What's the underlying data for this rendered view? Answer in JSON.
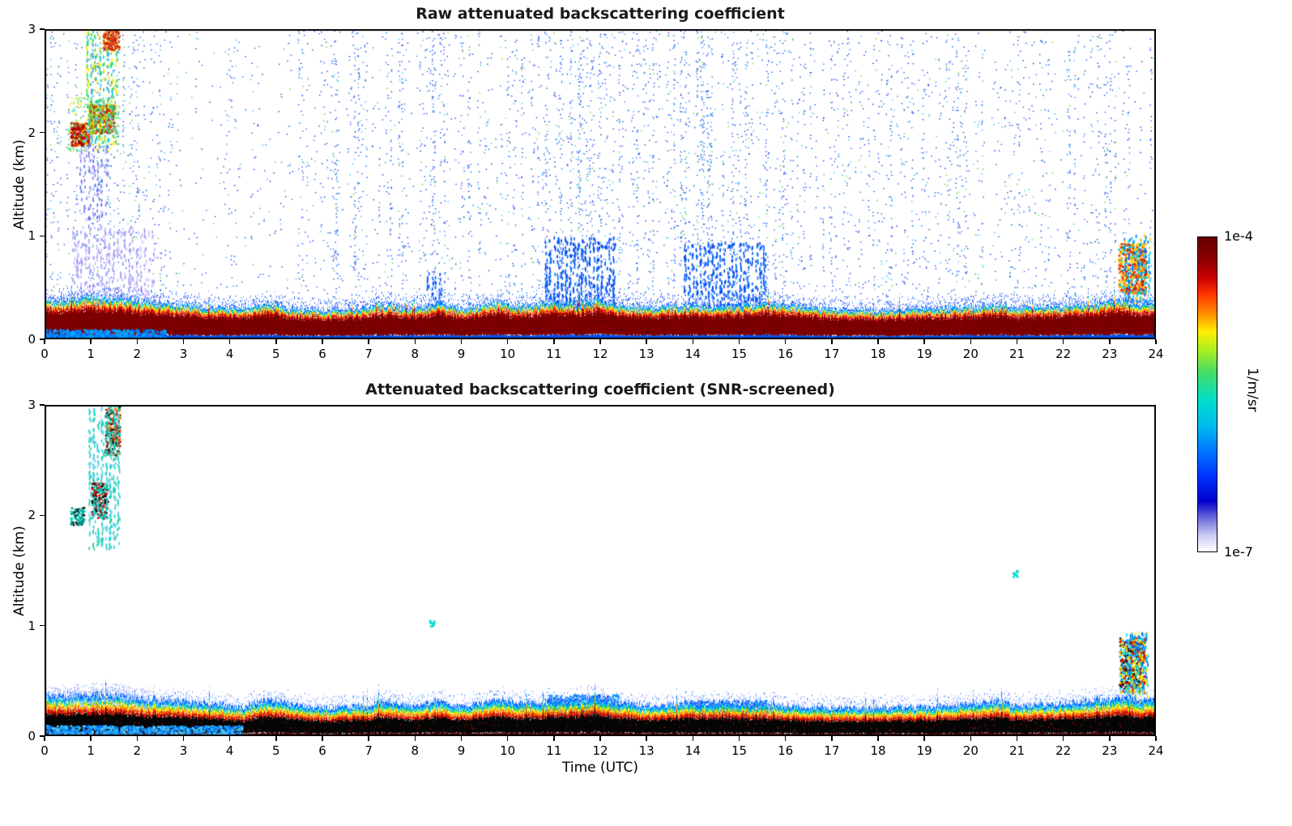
{
  "figure": {
    "colorbar": {
      "label_top": "1e-4",
      "label_bottom": "1e-7",
      "unit_label": "1/m/sr",
      "stops": [
        {
          "c": "#660000",
          "p": 0
        },
        {
          "c": "#8b0000",
          "p": 7
        },
        {
          "c": "#cc0000",
          "p": 13
        },
        {
          "c": "#ff3300",
          "p": 18
        },
        {
          "c": "#ff8800",
          "p": 24
        },
        {
          "c": "#ffee00",
          "p": 30
        },
        {
          "c": "#aaee22",
          "p": 36
        },
        {
          "c": "#44dd66",
          "p": 43
        },
        {
          "c": "#00ddcc",
          "p": 52
        },
        {
          "c": "#00bbee",
          "p": 60
        },
        {
          "c": "#0077ff",
          "p": 68
        },
        {
          "c": "#0033ff",
          "p": 76
        },
        {
          "c": "#0000cc",
          "p": 84
        },
        {
          "c": "#7777dd",
          "p": 90
        },
        {
          "c": "#ccccf5",
          "p": 95
        },
        {
          "c": "#ffffff",
          "p": 100
        }
      ]
    }
  },
  "chart_data": [
    {
      "type": "heatmap",
      "title": "Raw attenuated backscattering coefficient",
      "ylabel": "Altitude (km)",
      "xlabel": "",
      "xlim": [
        0,
        24
      ],
      "ylim": [
        0,
        3
      ],
      "xticks": [
        0,
        1,
        2,
        3,
        4,
        5,
        6,
        7,
        8,
        9,
        10,
        11,
        12,
        13,
        14,
        15,
        16,
        17,
        18,
        19,
        20,
        21,
        22,
        23,
        24
      ],
      "yticks": [
        0,
        1,
        2,
        3
      ],
      "value_min_label": "1e-7",
      "value_max_label": "1e-4",
      "units": "1/m/sr",
      "noise_density_per_hour": [
        0.38,
        0.55,
        0.3,
        0.14,
        0.14,
        0.3,
        0.55,
        0.5,
        0.55,
        0.5,
        0.45,
        0.62,
        0.58,
        0.62,
        0.62,
        0.5,
        0.38,
        0.45,
        0.45,
        0.4,
        0.35,
        0.35,
        0.45,
        0.38
      ],
      "noise_palette": {
        "blue": [
          "#0033dd",
          "#0055ff",
          "#1a42e6",
          "#3366ff"
        ],
        "cyan": "#22bbee",
        "green": "#55cc44"
      },
      "layer": {
        "top_km": [
          [
            0,
            0.36
          ],
          [
            0.5,
            0.38
          ],
          [
            1,
            0.4
          ],
          [
            1.5,
            0.38
          ],
          [
            2,
            0.36
          ],
          [
            2.5,
            0.34
          ],
          [
            3,
            0.32
          ],
          [
            3.5,
            0.3
          ],
          [
            4,
            0.29
          ],
          [
            4.5,
            0.3
          ],
          [
            4.9,
            0.34
          ],
          [
            5.2,
            0.29
          ],
          [
            6,
            0.27
          ],
          [
            7,
            0.29
          ],
          [
            7.3,
            0.33
          ],
          [
            8,
            0.28
          ],
          [
            8.45,
            0.34
          ],
          [
            9,
            0.28
          ],
          [
            9.8,
            0.35
          ],
          [
            10.2,
            0.3
          ],
          [
            11,
            0.35
          ],
          [
            11.5,
            0.33
          ],
          [
            11.9,
            0.37
          ],
          [
            12.3,
            0.32
          ],
          [
            13,
            0.29
          ],
          [
            13.5,
            0.31
          ],
          [
            14,
            0.32
          ],
          [
            14.5,
            0.3
          ],
          [
            15,
            0.32
          ],
          [
            15.8,
            0.34
          ],
          [
            16.5,
            0.3
          ],
          [
            17,
            0.28
          ],
          [
            18,
            0.27
          ],
          [
            19,
            0.28
          ],
          [
            20,
            0.3
          ],
          [
            20.6,
            0.32
          ],
          [
            21,
            0.29
          ],
          [
            22,
            0.31
          ],
          [
            22.8,
            0.34
          ],
          [
            23.3,
            0.36
          ],
          [
            23.7,
            0.32
          ],
          [
            24,
            0.34
          ]
        ],
        "bands": [
          {
            "from": 0,
            "to": 0.13,
            "color": "#0050ee"
          },
          {
            "from": 0.13,
            "to": 0.72,
            "color": "#7d0000"
          },
          {
            "from": 0.72,
            "to": 0.8,
            "color": "#cc0000"
          },
          {
            "from": 0.8,
            "to": 0.86,
            "color": "#ff7700"
          },
          {
            "from": 0.86,
            "to": 0.9,
            "color": "#ffee00"
          },
          {
            "from": 0.9,
            "to": 0.94,
            "color": "#33cc66"
          },
          {
            "from": 0.94,
            "to": 1,
            "color": "#00bbee"
          },
          {
            "from": 1,
            "to": 1.1,
            "color": "#0044ff",
            "sparse": 0.6
          }
        ],
        "core_speckle": {
          "color": "#3a0000",
          "density": 0.3
        },
        "fuzz_colors": [
          "#0044ff",
          "#3366ff",
          "#88aaff"
        ]
      },
      "events": [
        {
          "name": "dawn-cloud-core",
          "t": [
            0.55,
            0.95
          ],
          "alt": [
            1.88,
            2.1
          ],
          "palette": [
            "#990000",
            "#cc1100",
            "#ee4400"
          ],
          "density": 2.6
        },
        {
          "name": "dawn-cloud-core-2",
          "t": [
            0.95,
            1.5
          ],
          "alt": [
            2.0,
            2.28
          ],
          "palette": [
            "#bb1100",
            "#dd3300",
            "#88cc33"
          ],
          "density": 2.2
        },
        {
          "name": "dawn-cloud-halo",
          "t": [
            0.5,
            1.6
          ],
          "alt": [
            1.82,
            2.35
          ],
          "palette": [
            "#88dd44",
            "#ffee00",
            "#00ddbb"
          ],
          "density": 0.5
        },
        {
          "name": "dawn-plume",
          "t": [
            0.9,
            1.6
          ],
          "alt": [
            1.9,
            3.0
          ],
          "palette": [
            "#00ddaa",
            "#55cc33",
            "#33bbff",
            "#ffee00"
          ],
          "density": 0.5,
          "streaky": true
        },
        {
          "name": "dawn-top-red-streak",
          "t": [
            1.25,
            1.6
          ],
          "alt": [
            2.8,
            3.0
          ],
          "palette": [
            "#cc2200",
            "#ee5500"
          ],
          "density": 1.6
        },
        {
          "name": "dawn-subcloud-virga",
          "t": [
            0.75,
            1.4
          ],
          "alt": [
            1.15,
            1.9
          ],
          "palette": [
            "#8877ee",
            "#5566ee",
            "#aabbff"
          ],
          "density": 0.3,
          "streaky": true
        },
        {
          "name": "dawn-lavender-fuzz",
          "t": [
            0.6,
            2.4
          ],
          "alt": [
            0.38,
            1.1
          ],
          "palette": [
            "#ccbbff",
            "#9999ee"
          ],
          "density": 0.35,
          "streaky": true
        },
        {
          "name": "midday-plume-1",
          "t": [
            10.8,
            12.35
          ],
          "alt": [
            0.32,
            1.0
          ],
          "palette": [
            "#0044ee",
            "#0066ff"
          ],
          "density": 0.5,
          "streaky": true
        },
        {
          "name": "midday-plume-2",
          "t": [
            13.8,
            15.6
          ],
          "alt": [
            0.32,
            0.95
          ],
          "palette": [
            "#0044ee",
            "#0066ff"
          ],
          "density": 0.45,
          "streaky": true
        },
        {
          "name": "morning-plume-small",
          "t": [
            8.25,
            8.6
          ],
          "alt": [
            0.3,
            0.65
          ],
          "palette": [
            "#0055ff"
          ],
          "density": 0.4,
          "streaky": true
        },
        {
          "name": "evening-cloud",
          "t": [
            23.18,
            23.78
          ],
          "alt": [
            0.45,
            0.93
          ],
          "palette": [
            "#cc1100",
            "#ee4400",
            "#ff8800",
            "#ffcc00",
            "#00ccdd"
          ],
          "density": 2.0
        },
        {
          "name": "evening-streaks",
          "t": [
            23.3,
            23.9
          ],
          "alt": [
            0.32,
            1.02
          ],
          "palette": [
            "#00ccee",
            "#0066ff",
            "#ffcc00"
          ],
          "density": 0.5,
          "streaky": true
        }
      ],
      "overlays": [
        {
          "name": "early-surface-blue",
          "t": [
            0,
            2.6
          ],
          "alt": [
            0,
            0.1
          ],
          "palette": [
            "#0077ff",
            "#00aaff"
          ],
          "density": 2.2
        }
      ]
    },
    {
      "type": "heatmap",
      "title": "Attenuated backscattering coefficient (SNR-screened)",
      "ylabel": "Altitude (km)",
      "xlabel": "Time (UTC)",
      "xlim": [
        0,
        24
      ],
      "ylim": [
        0,
        3
      ],
      "xticks": [
        0,
        1,
        2,
        3,
        4,
        5,
        6,
        7,
        8,
        9,
        10,
        11,
        12,
        13,
        14,
        15,
        16,
        17,
        18,
        19,
        20,
        21,
        22,
        23,
        24
      ],
      "yticks": [
        0,
        1,
        2,
        3
      ],
      "value_min_label": "1e-7",
      "value_max_label": "1e-4",
      "units": "1/m/sr",
      "layer": {
        "top_km": [
          [
            0,
            0.34
          ],
          [
            1,
            0.36
          ],
          [
            2,
            0.33
          ],
          [
            3,
            0.3
          ],
          [
            3.8,
            0.27
          ],
          [
            4.3,
            0.24
          ],
          [
            4.6,
            0.3
          ],
          [
            5,
            0.31
          ],
          [
            5.5,
            0.26
          ],
          [
            6,
            0.24
          ],
          [
            7,
            0.26
          ],
          [
            7.3,
            0.3
          ],
          [
            8,
            0.25
          ],
          [
            8.45,
            0.3
          ],
          [
            9,
            0.25
          ],
          [
            9.8,
            0.32
          ],
          [
            10.2,
            0.27
          ],
          [
            11,
            0.3
          ],
          [
            11.8,
            0.33
          ],
          [
            12.3,
            0.29
          ],
          [
            13,
            0.26
          ],
          [
            14,
            0.28
          ],
          [
            15,
            0.28
          ],
          [
            16,
            0.26
          ],
          [
            17,
            0.24
          ],
          [
            18,
            0.24
          ],
          [
            19,
            0.25
          ],
          [
            20,
            0.27
          ],
          [
            20.6,
            0.3
          ],
          [
            21,
            0.26
          ],
          [
            22,
            0.28
          ],
          [
            22.8,
            0.31
          ],
          [
            23.3,
            0.33
          ],
          [
            23.7,
            0.3
          ],
          [
            24,
            0.31
          ]
        ],
        "bands": [
          {
            "from": 0,
            "to": 0.1,
            "color": "#5a0000"
          },
          {
            "from": 0.1,
            "to": 0.58,
            "color": "#050505"
          },
          {
            "from": 0.58,
            "to": 0.68,
            "color": "#cc1100"
          },
          {
            "from": 0.68,
            "to": 0.76,
            "color": "#ff7700"
          },
          {
            "from": 0.76,
            "to": 0.83,
            "color": "#ffee00"
          },
          {
            "from": 0.83,
            "to": 0.89,
            "color": "#33cc66"
          },
          {
            "from": 0.89,
            "to": 0.96,
            "color": "#00ccee"
          },
          {
            "from": 0.96,
            "to": 1.06,
            "color": "#0066ff"
          },
          {
            "from": 1.06,
            "to": 1.16,
            "color": "#99bbff",
            "sparse": 0.4
          }
        ],
        "core_speckle": {
          "color": "#cc1100",
          "density": 0.22
        },
        "fuzz_colors": [
          "#4488ff",
          "#99bbff",
          "#ccccff"
        ]
      },
      "events": [
        {
          "name": "dawn-cloud-patch",
          "t": [
            0.55,
            0.85
          ],
          "alt": [
            1.92,
            2.08
          ],
          "palette": [
            "#00ddcc",
            "#009988",
            "#111111"
          ],
          "density": 1.8
        },
        {
          "name": "dawn-cloud-core",
          "t": [
            1.0,
            1.35
          ],
          "alt": [
            1.98,
            2.3
          ],
          "palette": [
            "#111111",
            "#cc1100",
            "#00ccbb"
          ],
          "density": 2.0
        },
        {
          "name": "dawn-cloud-upper",
          "t": [
            1.3,
            1.62
          ],
          "alt": [
            2.55,
            3.0
          ],
          "palette": [
            "#111111",
            "#ee8800",
            "#cc2200",
            "#00ccbb"
          ],
          "density": 1.8
        },
        {
          "name": "dawn-plume",
          "t": [
            0.95,
            1.65
          ],
          "alt": [
            1.7,
            3.0
          ],
          "palette": [
            "#00ddcc",
            "#33ccaa",
            "#55ccee"
          ],
          "density": 0.5,
          "streaky": true
        },
        {
          "name": "midday-blue-bump-1",
          "t": [
            10.85,
            12.4
          ],
          "alt": [
            0.18,
            0.38
          ],
          "palette": [
            "#0044ee",
            "#0077ff",
            "#00aaff"
          ],
          "density": 1.4
        },
        {
          "name": "midday-blue-bump-2",
          "t": [
            13.9,
            15.6
          ],
          "alt": [
            0.17,
            0.33
          ],
          "palette": [
            "#0044ee",
            "#0077ff"
          ],
          "density": 1.2
        },
        {
          "name": "evening-cloud",
          "t": [
            23.2,
            23.75
          ],
          "alt": [
            0.4,
            0.9
          ],
          "palette": [
            "#111111",
            "#cc1100",
            "#ffcc00",
            "#00ccee"
          ],
          "density": 2.2
        },
        {
          "name": "evening-streaks",
          "t": [
            23.35,
            23.85
          ],
          "alt": [
            0.3,
            0.95
          ],
          "palette": [
            "#00ccee",
            "#ffee00",
            "#0066ff"
          ],
          "density": 0.6,
          "streaky": true
        },
        {
          "name": "isolated-speck-1",
          "t": [
            8.3,
            8.4
          ],
          "alt": [
            1.0,
            1.06
          ],
          "palette": [
            "#00ddcc"
          ],
          "density": 2
        },
        {
          "name": "isolated-speck-2",
          "t": [
            20.9,
            21.0
          ],
          "alt": [
            1.45,
            1.52
          ],
          "palette": [
            "#00ddcc"
          ],
          "density": 2
        }
      ],
      "overlays": [
        {
          "name": "early-surface-blue",
          "t": [
            0,
            4.25
          ],
          "alt": [
            0,
            0.1
          ],
          "palette": [
            "#22aaff",
            "#0077ff",
            "#55ccff"
          ],
          "density": 2.4
        },
        {
          "name": "early-lavender-fuzz",
          "t": [
            0.15,
            2.2
          ],
          "alt": [
            0.25,
            0.45
          ],
          "palette": [
            "#ccccff",
            "#bbbbee"
          ],
          "density": 0.5
        },
        {
          "name": "early-lavender-fuzz-2",
          "t": [
            2.2,
            3.4
          ],
          "alt": [
            0.24,
            0.36
          ],
          "palette": [
            "#ccccff"
          ],
          "density": 0.3
        }
      ]
    }
  ]
}
